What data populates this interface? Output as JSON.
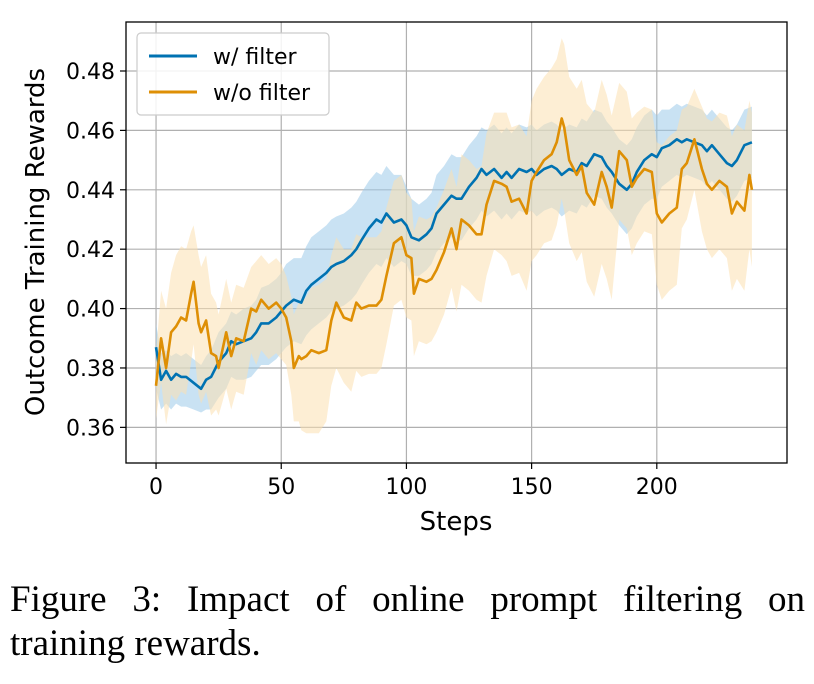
{
  "chart_data": {
    "type": "line",
    "xlabel": "Steps",
    "ylabel": "Outcome Training Rewards",
    "xlim": [
      -12,
      252
    ],
    "ylim": [
      0.348,
      0.4965
    ],
    "xticks": [
      0,
      50,
      100,
      150,
      200
    ],
    "yticks": [
      0.36,
      0.38,
      0.4,
      0.42,
      0.44,
      0.46,
      0.48
    ],
    "ytick_labels": [
      "0.36",
      "0.38",
      "0.40",
      "0.42",
      "0.44",
      "0.46",
      "0.48"
    ],
    "grid": true,
    "legend_position": "top-left",
    "series": [
      {
        "name": "w/ filter",
        "color": "#0072B2",
        "band_color": "#9ccbea",
        "x": [
          0,
          2,
          4,
          6,
          8,
          10,
          12,
          15,
          18,
          20,
          22,
          25,
          28,
          30,
          32,
          35,
          38,
          40,
          42,
          45,
          48,
          50,
          52,
          55,
          58,
          60,
          62,
          65,
          68,
          70,
          72,
          75,
          78,
          80,
          82,
          85,
          88,
          90,
          92,
          95,
          98,
          100,
          102,
          105,
          108,
          110,
          112,
          115,
          118,
          120,
          122,
          125,
          128,
          130,
          132,
          135,
          138,
          140,
          142,
          145,
          148,
          150,
          152,
          155,
          158,
          160,
          162,
          165,
          168,
          170,
          172,
          175,
          178,
          180,
          182,
          185,
          188,
          190,
          192,
          195,
          198,
          200,
          202,
          205,
          208,
          210,
          212,
          215,
          218,
          220,
          222,
          225,
          228,
          230,
          232,
          235,
          238
        ],
        "values": [
          0.387,
          0.376,
          0.379,
          0.376,
          0.378,
          0.377,
          0.377,
          0.375,
          0.373,
          0.376,
          0.377,
          0.382,
          0.385,
          0.389,
          0.388,
          0.389,
          0.39,
          0.392,
          0.395,
          0.395,
          0.397,
          0.399,
          0.401,
          0.403,
          0.402,
          0.406,
          0.408,
          0.41,
          0.412,
          0.414,
          0.415,
          0.416,
          0.418,
          0.42,
          0.423,
          0.427,
          0.43,
          0.429,
          0.432,
          0.429,
          0.43,
          0.428,
          0.424,
          0.423,
          0.425,
          0.427,
          0.432,
          0.435,
          0.438,
          0.437,
          0.437,
          0.441,
          0.444,
          0.447,
          0.445,
          0.447,
          0.444,
          0.446,
          0.444,
          0.447,
          0.446,
          0.447,
          0.445,
          0.447,
          0.448,
          0.447,
          0.445,
          0.447,
          0.446,
          0.449,
          0.448,
          0.452,
          0.451,
          0.448,
          0.446,
          0.442,
          0.44,
          0.442,
          0.446,
          0.45,
          0.452,
          0.451,
          0.454,
          0.455,
          0.457,
          0.456,
          0.457,
          0.456,
          0.455,
          0.453,
          0.455,
          0.452,
          0.449,
          0.448,
          0.45,
          0.455,
          0.456
        ],
        "upper": [
          0.395,
          0.385,
          0.386,
          0.384,
          0.385,
          0.384,
          0.385,
          0.383,
          0.381,
          0.384,
          0.386,
          0.392,
          0.395,
          0.399,
          0.398,
          0.4,
          0.401,
          0.403,
          0.407,
          0.408,
          0.41,
          0.412,
          0.415,
          0.417,
          0.417,
          0.421,
          0.424,
          0.426,
          0.428,
          0.43,
          0.431,
          0.432,
          0.434,
          0.436,
          0.439,
          0.443,
          0.446,
          0.445,
          0.448,
          0.445,
          0.445,
          0.441,
          0.437,
          0.435,
          0.437,
          0.439,
          0.445,
          0.448,
          0.452,
          0.451,
          0.451,
          0.455,
          0.458,
          0.461,
          0.46,
          0.462,
          0.459,
          0.461,
          0.459,
          0.462,
          0.461,
          0.462,
          0.46,
          0.462,
          0.463,
          0.462,
          0.46,
          0.462,
          0.461,
          0.464,
          0.463,
          0.467,
          0.466,
          0.463,
          0.461,
          0.457,
          0.455,
          0.457,
          0.461,
          0.465,
          0.467,
          0.465,
          0.467,
          0.467,
          0.469,
          0.468,
          0.469,
          0.468,
          0.467,
          0.465,
          0.467,
          0.464,
          0.461,
          0.46,
          0.462,
          0.467,
          0.468
        ],
        "lower": [
          0.373,
          0.366,
          0.368,
          0.366,
          0.368,
          0.367,
          0.367,
          0.366,
          0.365,
          0.366,
          0.366,
          0.37,
          0.373,
          0.377,
          0.376,
          0.376,
          0.377,
          0.379,
          0.381,
          0.381,
          0.383,
          0.385,
          0.387,
          0.389,
          0.388,
          0.391,
          0.393,
          0.395,
          0.397,
          0.399,
          0.4,
          0.401,
          0.403,
          0.405,
          0.408,
          0.412,
          0.415,
          0.414,
          0.417,
          0.414,
          0.416,
          0.415,
          0.411,
          0.411,
          0.413,
          0.415,
          0.419,
          0.422,
          0.424,
          0.423,
          0.423,
          0.427,
          0.43,
          0.433,
          0.431,
          0.433,
          0.43,
          0.432,
          0.43,
          0.433,
          0.432,
          0.433,
          0.431,
          0.433,
          0.434,
          0.433,
          0.431,
          0.433,
          0.432,
          0.435,
          0.434,
          0.438,
          0.437,
          0.434,
          0.432,
          0.428,
          0.425,
          0.427,
          0.431,
          0.435,
          0.437,
          0.437,
          0.441,
          0.443,
          0.445,
          0.444,
          0.445,
          0.444,
          0.443,
          0.441,
          0.443,
          0.44,
          0.437,
          0.436,
          0.438,
          0.443,
          0.444
        ]
      },
      {
        "name": "w/o filter",
        "color": "#DE8F05",
        "band_color": "#fbe0b1",
        "x": [
          0,
          2,
          4,
          6,
          8,
          10,
          12,
          14,
          15,
          17,
          18,
          20,
          22,
          24,
          25,
          28,
          30,
          32,
          35,
          38,
          40,
          42,
          45,
          48,
          50,
          52,
          54,
          55,
          57,
          58,
          60,
          62,
          65,
          68,
          70,
          72,
          75,
          78,
          80,
          82,
          85,
          88,
          90,
          92,
          95,
          98,
          100,
          102,
          103,
          105,
          108,
          110,
          112,
          115,
          118,
          120,
          122,
          125,
          128,
          130,
          132,
          135,
          138,
          140,
          142,
          145,
          148,
          150,
          152,
          155,
          158,
          160,
          162,
          163,
          165,
          168,
          170,
          172,
          175,
          178,
          180,
          182,
          185,
          188,
          190,
          192,
          195,
          198,
          200,
          202,
          205,
          208,
          210,
          212,
          215,
          218,
          220,
          222,
          225,
          228,
          230,
          232,
          235,
          237,
          238
        ],
        "values": [
          0.374,
          0.39,
          0.38,
          0.392,
          0.394,
          0.397,
          0.396,
          0.405,
          0.409,
          0.395,
          0.392,
          0.396,
          0.385,
          0.384,
          0.38,
          0.392,
          0.384,
          0.39,
          0.389,
          0.4,
          0.399,
          0.403,
          0.4,
          0.402,
          0.4,
          0.397,
          0.389,
          0.38,
          0.384,
          0.383,
          0.384,
          0.386,
          0.385,
          0.386,
          0.396,
          0.402,
          0.397,
          0.396,
          0.402,
          0.4,
          0.401,
          0.401,
          0.403,
          0.411,
          0.422,
          0.424,
          0.418,
          0.417,
          0.405,
          0.41,
          0.409,
          0.41,
          0.413,
          0.419,
          0.427,
          0.42,
          0.43,
          0.428,
          0.425,
          0.425,
          0.435,
          0.443,
          0.442,
          0.441,
          0.436,
          0.437,
          0.432,
          0.443,
          0.446,
          0.45,
          0.452,
          0.456,
          0.464,
          0.461,
          0.45,
          0.445,
          0.448,
          0.439,
          0.435,
          0.446,
          0.441,
          0.434,
          0.453,
          0.45,
          0.441,
          0.444,
          0.447,
          0.446,
          0.432,
          0.429,
          0.432,
          0.434,
          0.447,
          0.449,
          0.457,
          0.447,
          0.442,
          0.44,
          0.443,
          0.441,
          0.432,
          0.436,
          0.433,
          0.445,
          0.44
        ],
        "upper": [
          0.385,
          0.406,
          0.4,
          0.412,
          0.418,
          0.421,
          0.42,
          0.426,
          0.428,
          0.418,
          0.414,
          0.418,
          0.405,
          0.402,
          0.398,
          0.41,
          0.402,
          0.408,
          0.407,
          0.414,
          0.416,
          0.418,
          0.415,
          0.417,
          0.415,
          0.411,
          0.404,
          0.398,
          0.402,
          0.402,
          0.404,
          0.407,
          0.408,
          0.41,
          0.418,
          0.424,
          0.42,
          0.42,
          0.425,
          0.424,
          0.424,
          0.424,
          0.426,
          0.434,
          0.443,
          0.445,
          0.439,
          0.437,
          0.426,
          0.431,
          0.43,
          0.431,
          0.434,
          0.44,
          0.447,
          0.441,
          0.452,
          0.45,
          0.447,
          0.448,
          0.459,
          0.466,
          0.466,
          0.466,
          0.461,
          0.462,
          0.458,
          0.47,
          0.474,
          0.478,
          0.481,
          0.484,
          0.491,
          0.489,
          0.478,
          0.474,
          0.477,
          0.469,
          0.466,
          0.477,
          0.472,
          0.465,
          0.476,
          0.473,
          0.464,
          0.466,
          0.468,
          0.467,
          0.456,
          0.455,
          0.458,
          0.46,
          0.467,
          0.468,
          0.474,
          0.468,
          0.464,
          0.463,
          0.466,
          0.465,
          0.458,
          0.462,
          0.46,
          0.47,
          0.466
        ],
        "lower": [
          0.363,
          0.375,
          0.361,
          0.371,
          0.369,
          0.372,
          0.371,
          0.382,
          0.388,
          0.371,
          0.368,
          0.372,
          0.364,
          0.366,
          0.364,
          0.373,
          0.366,
          0.372,
          0.371,
          0.385,
          0.381,
          0.386,
          0.383,
          0.385,
          0.383,
          0.381,
          0.371,
          0.362,
          0.362,
          0.359,
          0.358,
          0.358,
          0.358,
          0.362,
          0.374,
          0.38,
          0.375,
          0.372,
          0.379,
          0.377,
          0.378,
          0.378,
          0.38,
          0.388,
          0.401,
          0.403,
          0.397,
          0.396,
          0.384,
          0.389,
          0.388,
          0.389,
          0.392,
          0.398,
          0.407,
          0.399,
          0.408,
          0.406,
          0.403,
          0.402,
          0.411,
          0.42,
          0.418,
          0.416,
          0.411,
          0.412,
          0.406,
          0.416,
          0.418,
          0.422,
          0.423,
          0.428,
          0.437,
          0.433,
          0.422,
          0.416,
          0.419,
          0.409,
          0.404,
          0.415,
          0.41,
          0.403,
          0.43,
          0.427,
          0.418,
          0.422,
          0.426,
          0.425,
          0.408,
          0.403,
          0.406,
          0.408,
          0.427,
          0.43,
          0.44,
          0.426,
          0.42,
          0.417,
          0.42,
          0.417,
          0.406,
          0.41,
          0.406,
          0.42,
          0.414
        ]
      }
    ]
  },
  "caption": {
    "text": "Figure 3:  Impact of online prompt filtering on training rewards."
  }
}
